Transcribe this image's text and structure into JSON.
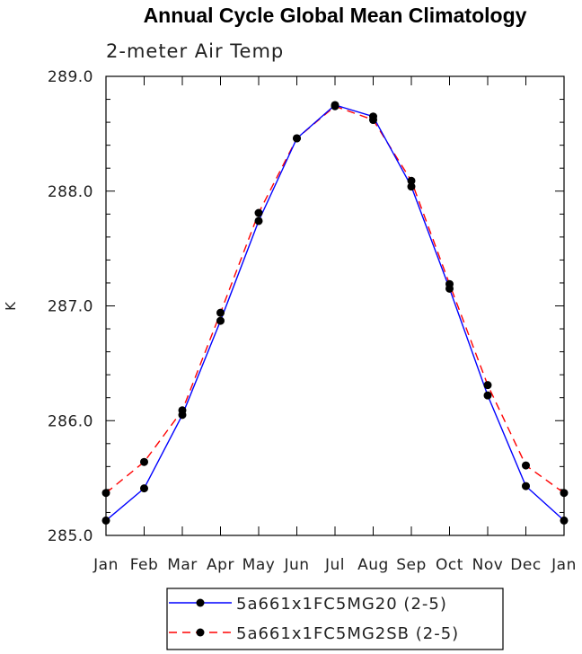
{
  "chart_data": {
    "type": "line",
    "title": "Annual Cycle Global Mean Climatology",
    "subtitle": "2-meter Air Temp",
    "xlabel": "",
    "ylabel": "K",
    "categories": [
      "Jan",
      "Feb",
      "Mar",
      "Apr",
      "May",
      "Jun",
      "Jul",
      "Aug",
      "Sep",
      "Oct",
      "Nov",
      "Dec",
      "Jan"
    ],
    "yticks": [
      "285.0",
      "286.0",
      "287.0",
      "288.0",
      "289.0"
    ],
    "ylim": [
      285.0,
      289.0
    ],
    "grid": false,
    "legend_position": "bottom-center",
    "series": [
      {
        "name": "5a661x1FC5MG20 (2-5)",
        "color": "#0000ff",
        "dash": "solid",
        "marker": "filled-circle",
        "values": [
          285.13,
          285.41,
          286.05,
          286.87,
          287.74,
          288.46,
          288.75,
          288.65,
          288.04,
          287.15,
          286.22,
          285.43,
          285.13
        ]
      },
      {
        "name": "5a661x1FC5MG2SB (2-5)",
        "color": "#ff0000",
        "dash": "dashed",
        "marker": "filled-circle",
        "values": [
          285.37,
          285.64,
          286.09,
          286.94,
          287.81,
          288.46,
          288.74,
          288.62,
          288.09,
          287.19,
          286.31,
          285.61,
          285.37
        ]
      }
    ]
  }
}
